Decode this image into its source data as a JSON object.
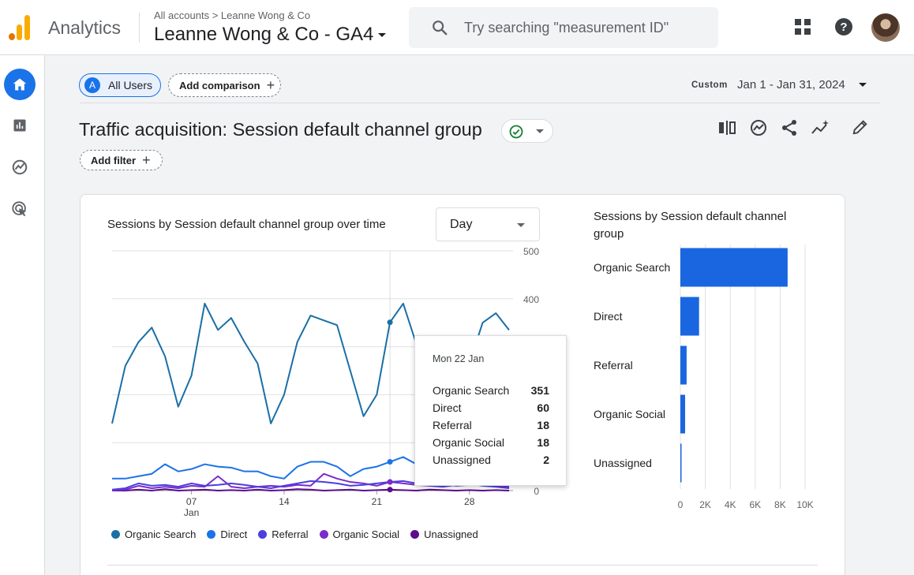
{
  "header": {
    "app_name": "Analytics",
    "breadcrumb": "All accounts  >  Leanne Wong & Co",
    "account_title": "Leanne Wong & Co - GA4",
    "search_placeholder": "Try searching \"measurement ID\""
  },
  "toolbar": {
    "segment_letter": "A",
    "segment_label": "All Users",
    "add_comparison": "Add comparison",
    "date_tag": "Custom",
    "date_range": "Jan 1 - Jan 31, 2024",
    "add_filter": "Add filter"
  },
  "report": {
    "title": "Traffic acquisition: Session default channel group"
  },
  "colors": {
    "organic_search": "#1a6fa6",
    "direct": "#1a73e8",
    "referral": "#4a3fe0",
    "organic_social": "#7b2cc9",
    "unassigned": "#5b0d8c",
    "bar": "#1a66e0"
  },
  "line_chart": {
    "title": "Sessions by Session default channel group over time",
    "granularity": "Day"
  },
  "bar_chart": {
    "title": "Sessions by Session default channel group"
  },
  "chart_data": [
    {
      "type": "line",
      "title": "Sessions by Session default channel group over time",
      "x": [
        1,
        2,
        3,
        4,
        5,
        6,
        7,
        8,
        9,
        10,
        11,
        12,
        13,
        14,
        15,
        16,
        17,
        18,
        19,
        20,
        21,
        22,
        23,
        24,
        25,
        26,
        27,
        28,
        29,
        30,
        31
      ],
      "x_tick_labels": [
        "07",
        "14",
        "21",
        "28"
      ],
      "x_tick_positions": [
        7,
        14,
        21,
        28
      ],
      "x_sub_label": "Jan",
      "y_tick_labels": [
        "0",
        "100",
        "200",
        "300",
        "400",
        "500"
      ],
      "ylim": [
        0,
        500
      ],
      "series": [
        {
          "name": "Organic Search",
          "values": [
            140,
            260,
            310,
            340,
            280,
            175,
            240,
            390,
            335,
            360,
            310,
            265,
            140,
            200,
            310,
            365,
            355,
            345,
            250,
            155,
            200,
            351,
            390,
            305,
            280,
            260,
            245,
            265,
            350,
            370,
            335
          ]
        },
        {
          "name": "Direct",
          "values": [
            25,
            25,
            30,
            35,
            55,
            40,
            45,
            55,
            50,
            48,
            40,
            40,
            30,
            25,
            50,
            60,
            60,
            50,
            30,
            45,
            50,
            60,
            70,
            55,
            50,
            45,
            40,
            45,
            35,
            30,
            28
          ]
        },
        {
          "name": "Referral",
          "values": [
            2,
            5,
            15,
            10,
            12,
            8,
            15,
            10,
            12,
            15,
            12,
            8,
            5,
            10,
            15,
            20,
            18,
            15,
            10,
            12,
            15,
            18,
            20,
            15,
            10,
            8,
            12,
            15,
            10,
            8,
            5
          ]
        },
        {
          "name": "Organic Social",
          "values": [
            0,
            2,
            10,
            5,
            8,
            5,
            10,
            8,
            30,
            8,
            5,
            8,
            10,
            8,
            12,
            10,
            35,
            25,
            18,
            15,
            10,
            18,
            15,
            12,
            10,
            15,
            10,
            12,
            15,
            10,
            8
          ]
        },
        {
          "name": "Unassigned",
          "values": [
            0,
            0,
            2,
            0,
            3,
            0,
            1,
            2,
            0,
            1,
            0,
            2,
            0,
            1,
            3,
            2,
            0,
            1,
            2,
            0,
            1,
            2,
            1,
            0,
            2,
            1,
            0,
            1,
            0,
            1,
            0
          ]
        }
      ],
      "tooltip": {
        "date": "Mon 22 Jan",
        "rows": [
          {
            "name": "Organic Search",
            "value": "351"
          },
          {
            "name": "Direct",
            "value": "60"
          },
          {
            "name": "Referral",
            "value": "18"
          },
          {
            "name": "Organic Social",
            "value": "18"
          },
          {
            "name": "Unassigned",
            "value": "2"
          }
        ]
      }
    },
    {
      "type": "bar",
      "title": "Sessions by Session default channel group",
      "orientation": "horizontal",
      "categories": [
        "Organic Search",
        "Direct",
        "Referral",
        "Organic Social",
        "Unassigned"
      ],
      "values": [
        8600,
        1500,
        500,
        380,
        60
      ],
      "x_tick_labels": [
        "0",
        "2K",
        "4K",
        "6K",
        "8K",
        "10K"
      ],
      "xlim": [
        0,
        10000
      ]
    }
  ]
}
